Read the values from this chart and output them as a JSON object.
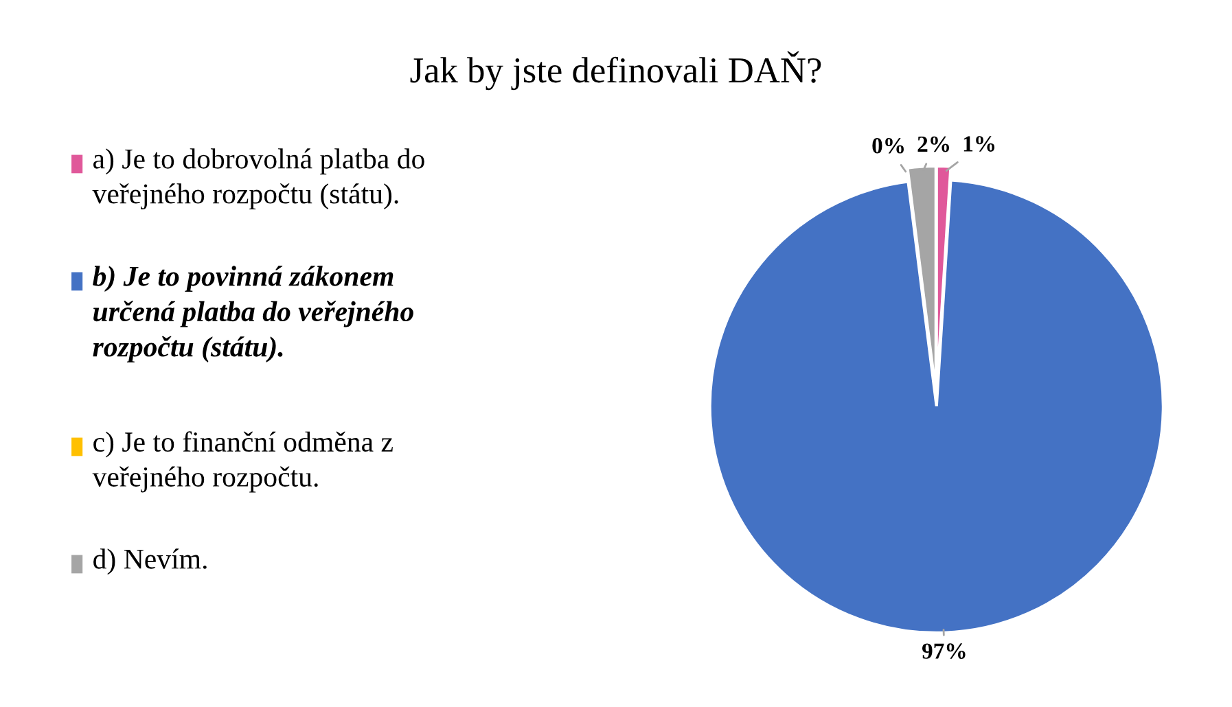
{
  "chart_data": {
    "type": "pie",
    "title": "Jak by jste definovali DAŇ?",
    "categories": [
      "a) Je to dobrovolná platba do veřejného rozpočtu (státu).",
      "b) Je to povinná zákonem určená platba do veřejného rozpočtu (státu).",
      "c) Je to finanční odměna z veřejného rozpočtu.",
      "d) Nevím."
    ],
    "values": [
      1,
      97,
      0,
      2
    ],
    "colors": [
      "#e0589a",
      "#4472c4",
      "#ffc000",
      "#a5a5a5"
    ],
    "value_labels": [
      "1%",
      "97%",
      "0%",
      "2%"
    ],
    "legend": "left"
  }
}
